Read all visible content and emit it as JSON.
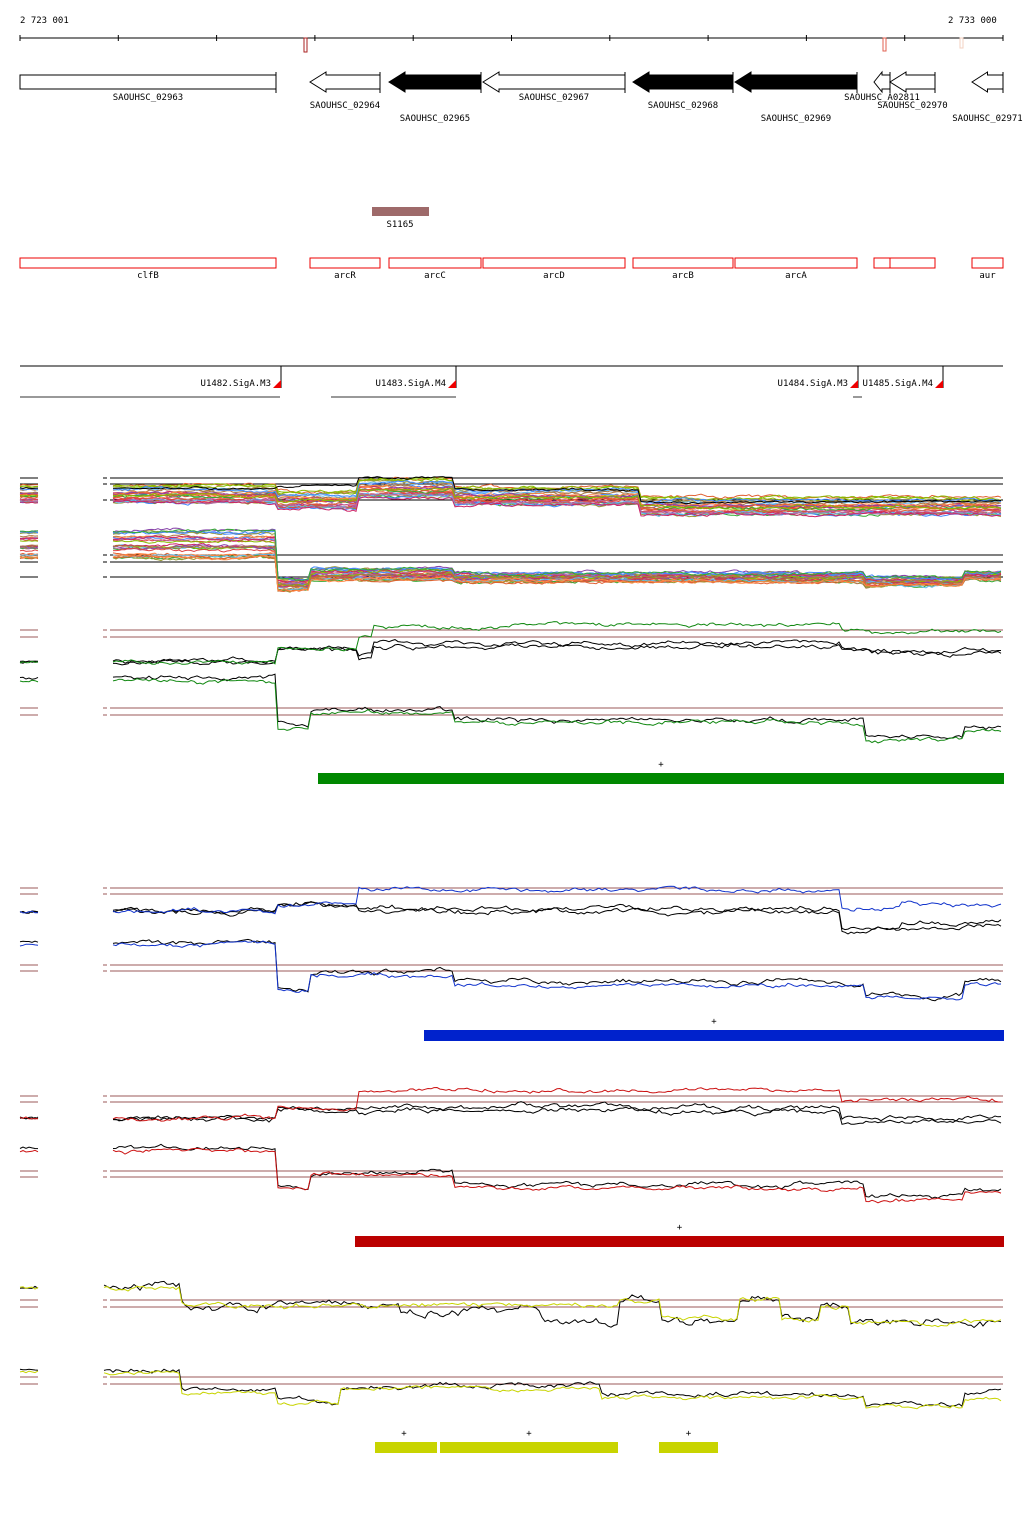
{
  "ruler": {
    "start_label": "2 723 001",
    "end_label": "2 733 000"
  },
  "genes": [
    {
      "name": "SAOUHSC_02963",
      "strand": "+",
      "style": "open"
    },
    {
      "name": "SAOUHSC_02964",
      "strand": "-",
      "style": "open"
    },
    {
      "name": "SAOUHSC_02965",
      "strand": "-",
      "style": "filled"
    },
    {
      "name": "SAOUHSC_02967",
      "strand": "-",
      "style": "open"
    },
    {
      "name": "SAOUHSC_02968",
      "strand": "-",
      "style": "filled"
    },
    {
      "name": "SAOUHSC_02969",
      "strand": "-",
      "style": "filled"
    },
    {
      "name": "SAOUHSC_A02811",
      "strand": "-",
      "style": "open"
    },
    {
      "name": "SAOUHSC_02970",
      "strand": "-",
      "style": "open"
    },
    {
      "name": "SAOUHSC_02971",
      "strand": "-",
      "style": "open"
    }
  ],
  "srna": {
    "name": "S1165",
    "color": "#9e6a6a"
  },
  "operon_genes": [
    "clfB",
    "arcR",
    "arcC",
    "arcD",
    "arcB",
    "arcA",
    "",
    "",
    "aur"
  ],
  "promoters": [
    "U1482.SigA.M3",
    "U1483.SigA.M4",
    "U1484.SigA.M3",
    "U1485.SigA.M4"
  ],
  "segments": [
    {
      "color": "#008800",
      "marks": [
        "+"
      ]
    },
    {
      "color": "#0022cc",
      "marks": [
        "+"
      ]
    },
    {
      "color": "#bb0000",
      "marks": [
        "+"
      ]
    },
    {
      "color": "#c8d400",
      "marks": [
        "+",
        "+",
        "+"
      ]
    }
  ]
}
